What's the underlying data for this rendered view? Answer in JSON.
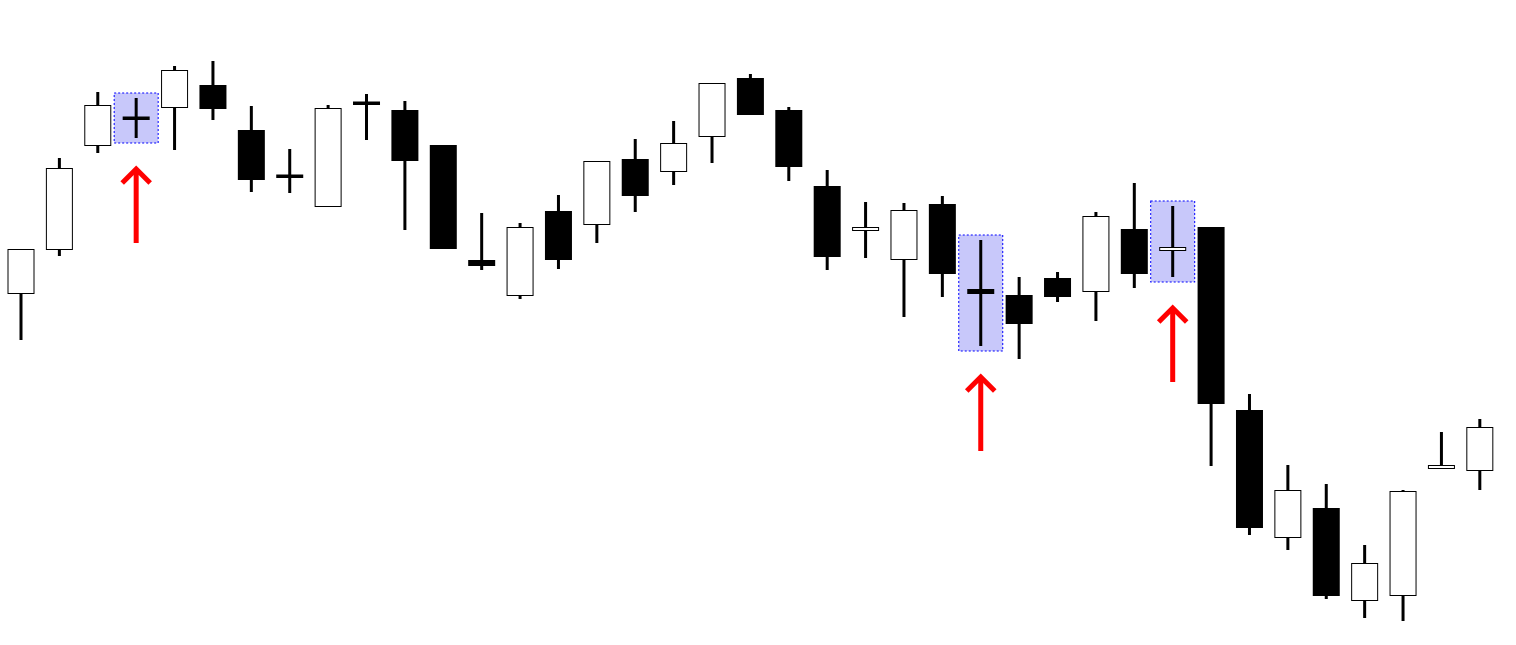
{
  "chart_data": {
    "type": "candlestick",
    "title": "",
    "xlabel": "",
    "ylabel": "",
    "axes_visible": false,
    "grid": false,
    "colors": {
      "bullish_body": "#ffffff",
      "bearish_body": "#000000",
      "outline": "#000000",
      "highlight_fill": "#c8c8fa",
      "highlight_border": "#0000ff",
      "arrow": "#ff0000"
    },
    "candles": [
      {
        "o": 352,
        "h": 396,
        "l": 305,
        "c": 396
      },
      {
        "o": 396,
        "h": 487,
        "l": 389,
        "c": 477
      },
      {
        "o": 500,
        "h": 553,
        "l": 492,
        "c": 540
      },
      {
        "o": 527,
        "h": 547,
        "l": 507,
        "c": 527
      },
      {
        "o": 538,
        "h": 579,
        "l": 495,
        "c": 575
      },
      {
        "o": 560,
        "h": 584,
        "l": 525,
        "c": 537
      },
      {
        "o": 515,
        "h": 539,
        "l": 453,
        "c": 466
      },
      {
        "o": 469,
        "h": 496,
        "l": 452,
        "c": 469
      },
      {
        "o": 439,
        "h": 540,
        "l": 439,
        "c": 537
      },
      {
        "o": 542,
        "h": 551,
        "l": 505,
        "c": 542
      },
      {
        "o": 535,
        "h": 544,
        "l": 415,
        "c": 485
      },
      {
        "o": 500,
        "h": 500,
        "l": 397,
        "c": 397
      },
      {
        "o": 385,
        "h": 432,
        "l": 375,
        "c": 380
      },
      {
        "o": 350,
        "h": 422,
        "l": 346,
        "c": 418
      },
      {
        "o": 434,
        "h": 450,
        "l": 376,
        "c": 386
      },
      {
        "o": 421,
        "h": 484,
        "l": 402,
        "c": 484
      },
      {
        "o": 486,
        "h": 506,
        "l": 433,
        "c": 450
      },
      {
        "o": 474,
        "h": 524,
        "l": 460,
        "c": 502
      },
      {
        "o": 509,
        "h": 562,
        "l": 482,
        "c": 562
      },
      {
        "o": 567,
        "h": 571,
        "l": 531,
        "c": 531
      },
      {
        "o": 535,
        "h": 538,
        "l": 464,
        "c": 479
      },
      {
        "o": 459,
        "h": 475,
        "l": 375,
        "c": 389
      },
      {
        "o": 415,
        "h": 443,
        "l": 387,
        "c": 418
      },
      {
        "o": 386,
        "h": 442,
        "l": 328,
        "c": 435
      },
      {
        "o": 441,
        "h": 449,
        "l": 348,
        "c": 372
      },
      {
        "o": 356,
        "h": 405,
        "l": 299,
        "c": 352
      },
      {
        "o": 350,
        "h": 368,
        "l": 286,
        "c": 322
      },
      {
        "o": 367,
        "h": 373,
        "l": 343,
        "c": 349
      },
      {
        "o": 354,
        "h": 433,
        "l": 324,
        "c": 429
      },
      {
        "o": 416,
        "h": 462,
        "l": 357,
        "c": 372
      },
      {
        "o": 395,
        "h": 439,
        "l": 368,
        "c": 398
      },
      {
        "o": 418,
        "h": 418,
        "l": 179,
        "c": 242
      },
      {
        "o": 235,
        "h": 251,
        "l": 110,
        "c": 118
      },
      {
        "o": 108,
        "h": 180,
        "l": 95,
        "c": 155
      },
      {
        "o": 137,
        "h": 161,
        "l": 46,
        "c": 50
      },
      {
        "o": 45,
        "h": 100,
        "l": 27,
        "c": 82
      },
      {
        "o": 50,
        "h": 155,
        "l": 24,
        "c": 154
      },
      {
        "o": 177,
        "h": 213,
        "l": 177,
        "c": 180
      },
      {
        "o": 175,
        "h": 226,
        "l": 155,
        "c": 218
      }
    ],
    "highlighted_candles": [
      4,
      26,
      31
    ],
    "arrows_under_candles": [
      4,
      26,
      31
    ],
    "arrow_direction": "up"
  }
}
